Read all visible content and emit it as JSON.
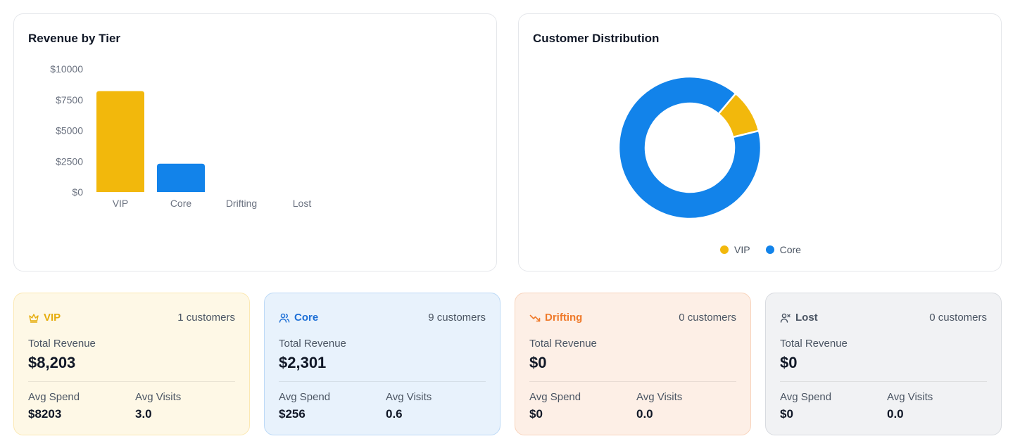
{
  "revenue_panel": {
    "title": "Revenue by Tier"
  },
  "distribution_panel": {
    "title": "Customer Distribution"
  },
  "chart_data": [
    {
      "type": "bar",
      "title": "Revenue by Tier",
      "categories": [
        "VIP",
        "Core",
        "Drifting",
        "Lost"
      ],
      "values": [
        8203,
        2301,
        0,
        0
      ],
      "colors": [
        "#f2b80c",
        "#1283ea",
        "#f2b80c",
        "#f2b80c"
      ],
      "yticks": [
        "$0",
        "$2500",
        "$5000",
        "$7500",
        "$10000"
      ],
      "ylim": [
        0,
        10000
      ],
      "grid": false,
      "legend": "none"
    },
    {
      "type": "pie",
      "title": "Customer Distribution",
      "variant": "donut",
      "labels": [
        "VIP",
        "Core"
      ],
      "values": [
        1,
        9
      ],
      "colors": [
        "#f2b80c",
        "#1283ea"
      ],
      "legend": "bottom"
    }
  ],
  "tiers": [
    {
      "name": "VIP",
      "icon": "crown-icon",
      "customers": "1 customers",
      "total_revenue_label": "Total Revenue",
      "total_revenue": "$8,203",
      "avg_spend_label": "Avg Spend",
      "avg_spend": "$8203",
      "avg_visits_label": "Avg Visits",
      "avg_visits": "3.0",
      "accent": "#e5ac0b",
      "bg": "#fef8e6",
      "border": "#fbe8b3"
    },
    {
      "name": "Core",
      "icon": "users-icon",
      "customers": "9 customers",
      "total_revenue_label": "Total Revenue",
      "total_revenue": "$2,301",
      "avg_spend_label": "Avg Spend",
      "avg_spend": "$256",
      "avg_visits_label": "Avg Visits",
      "avg_visits": "0.6",
      "accent": "#1d6fd6",
      "bg": "#e8f2fc",
      "border": "#bcd9f6"
    },
    {
      "name": "Drifting",
      "icon": "trending-down-icon",
      "customers": "0 customers",
      "total_revenue_label": "Total Revenue",
      "total_revenue": "$0",
      "avg_spend_label": "Avg Spend",
      "avg_spend": "$0",
      "avg_visits_label": "Avg Visits",
      "avg_visits": "0.0",
      "accent": "#ef7a2b",
      "bg": "#fdefe6",
      "border": "#f8d4bd"
    },
    {
      "name": "Lost",
      "icon": "user-x-icon",
      "customers": "0 customers",
      "total_revenue_label": "Total Revenue",
      "total_revenue": "$0",
      "avg_spend_label": "Avg Spend",
      "avg_spend": "$0",
      "avg_visits_label": "Avg Visits",
      "avg_visits": "0.0",
      "accent": "#4b5563",
      "bg": "#f1f2f4",
      "border": "#d8dbe0"
    }
  ]
}
